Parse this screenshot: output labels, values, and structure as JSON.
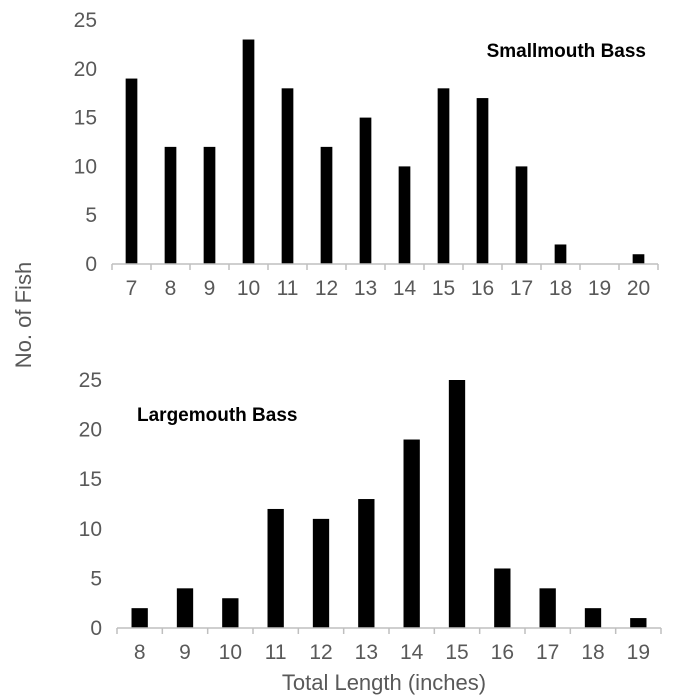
{
  "figure": {
    "ylabel": "No. of Fish",
    "xlabel": "Total Length (inches)",
    "bar_color": "#000000",
    "axis_color": "#bfbfbf",
    "label_color": "#595959"
  },
  "chart_data": [
    {
      "type": "bar",
      "title": "Smallmouth Bass",
      "title_position": "top-right",
      "categories": [
        "7",
        "8",
        "9",
        "10",
        "11",
        "12",
        "13",
        "14",
        "15",
        "16",
        "17",
        "18",
        "19",
        "20"
      ],
      "values": [
        19,
        12,
        12,
        23,
        18,
        12,
        15,
        10,
        18,
        17,
        10,
        2,
        0,
        1
      ],
      "yticks": [
        "0",
        "5",
        "10",
        "15",
        "20",
        "25"
      ],
      "ylim": [
        0,
        25
      ],
      "grid": false
    },
    {
      "type": "bar",
      "title": "Largemouth Bass",
      "title_position": "top-left",
      "categories": [
        "8",
        "9",
        "10",
        "11",
        "12",
        "13",
        "14",
        "15",
        "16",
        "17",
        "18",
        "19"
      ],
      "values": [
        2,
        4,
        3,
        12,
        11,
        13,
        19,
        25,
        6,
        4,
        2,
        1
      ],
      "yticks": [
        "0",
        "5",
        "10",
        "15",
        "20",
        "25"
      ],
      "ylim": [
        0,
        25
      ],
      "grid": false
    }
  ]
}
